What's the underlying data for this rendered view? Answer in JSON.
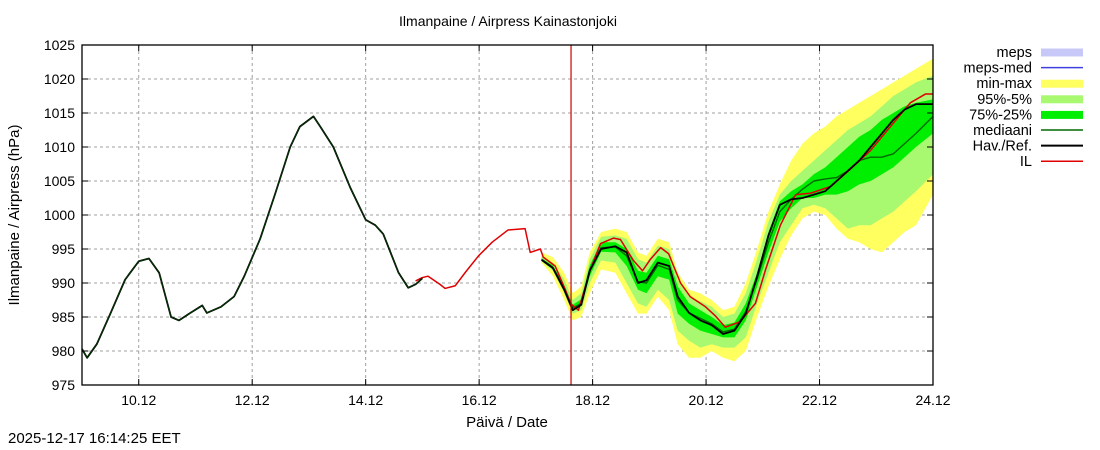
{
  "timestamp": "2025-12-17 16:14:25 EET",
  "colors": {
    "meps": "#c8c8f8",
    "meps_med": "#4040e0",
    "min_max": "#ffff60",
    "p95_5": "#a8f870",
    "p75_25": "#00ee00",
    "mediaani": "#006a00",
    "hav_ref": "#000000",
    "il": "#e00000",
    "now_line": "#d00000",
    "grid": "#a0a0a0"
  },
  "chart_data": {
    "type": "line",
    "title": "Ilmanpaine / Airpress Kainastonjoki",
    "xlabel": "Päivä / Date",
    "ylabel": "Ilmanpaine / Airpress (hPa)",
    "x_unit": "days since 9.12 00:00",
    "xlim": [
      0,
      15
    ],
    "ylim": [
      975,
      1025
    ],
    "grid": true,
    "legend_position": "right-outside-top",
    "xticks": [
      {
        "value": 1,
        "label": "10.12"
      },
      {
        "value": 3,
        "label": "12.12"
      },
      {
        "value": 5,
        "label": "14.12"
      },
      {
        "value": 7,
        "label": "16.12"
      },
      {
        "value": 9,
        "label": "18.12"
      },
      {
        "value": 11,
        "label": "20.12"
      },
      {
        "value": 13,
        "label": "22.12"
      },
      {
        "value": 15,
        "label": "24.12"
      }
    ],
    "yticks": [
      975,
      980,
      985,
      990,
      995,
      1000,
      1005,
      1010,
      1015,
      1020,
      1025
    ],
    "now_marker": 8.62,
    "legend": [
      {
        "key": "meps",
        "label": "meps",
        "style": "band"
      },
      {
        "key": "meps_med",
        "label": "meps-med",
        "style": "line"
      },
      {
        "key": "min_max",
        "label": "min-max",
        "style": "band"
      },
      {
        "key": "p95_5",
        "label": "95%-5%",
        "style": "band"
      },
      {
        "key": "p75_25",
        "label": "75%-25%",
        "style": "thickband"
      },
      {
        "key": "mediaani",
        "label": "mediaani",
        "style": "line"
      },
      {
        "key": "hav_ref",
        "label": "Hav./Ref.",
        "style": "line"
      },
      {
        "key": "il",
        "label": "IL",
        "style": "line"
      }
    ],
    "bands": {
      "min_max": {
        "x": [
          8.1,
          8.3,
          8.5,
          8.65,
          8.8,
          8.95,
          9.15,
          9.4,
          9.6,
          9.8,
          9.95,
          10.15,
          10.35,
          10.5,
          10.7,
          10.9,
          11.1,
          11.3,
          11.5,
          11.7,
          11.9,
          12.1,
          12.3,
          12.5,
          12.7,
          12.9,
          13.1,
          13.3,
          13.5,
          13.7,
          13.9,
          14.1,
          14.3,
          14.5,
          14.7,
          15.0
        ],
        "upper": [
          994.5,
          993.8,
          991.5,
          988.5,
          989.5,
          994.5,
          997.5,
          998.0,
          997.5,
          994.5,
          994.0,
          996.5,
          996.0,
          991.5,
          989.0,
          988.5,
          987.5,
          986.0,
          986.5,
          990.0,
          995.0,
          1000.5,
          1004.5,
          1008.0,
          1010.5,
          1012.0,
          1013.0,
          1014.5,
          1015.5,
          1016.5,
          1017.5,
          1018.5,
          1019.5,
          1020.5,
          1021.5,
          1023.0
        ],
        "lower": [
          993.0,
          991.0,
          987.5,
          984.5,
          985.0,
          988.5,
          992.0,
          991.5,
          988.5,
          985.5,
          985.5,
          988.0,
          986.0,
          981.0,
          979.0,
          979.0,
          980.0,
          979.0,
          978.5,
          980.0,
          985.0,
          989.5,
          993.5,
          997.0,
          999.5,
          1000.5,
          1000.0,
          998.0,
          996.5,
          996.0,
          995.0,
          994.5,
          996.0,
          997.5,
          998.5,
          1003.0
        ]
      },
      "p95_5": {
        "x": [
          8.1,
          8.3,
          8.5,
          8.65,
          8.8,
          8.95,
          9.15,
          9.4,
          9.6,
          9.8,
          9.95,
          10.15,
          10.35,
          10.5,
          10.7,
          10.9,
          11.1,
          11.3,
          11.5,
          11.7,
          11.9,
          12.1,
          12.3,
          12.5,
          12.7,
          12.9,
          13.1,
          13.3,
          13.5,
          13.7,
          13.9,
          14.1,
          14.3,
          14.5,
          14.7,
          15.0
        ],
        "upper": [
          994.0,
          993.0,
          990.5,
          987.5,
          988.5,
          993.5,
          996.8,
          997.0,
          996.5,
          993.5,
          993.0,
          995.5,
          995.0,
          990.5,
          988.0,
          987.3,
          986.5,
          985.0,
          985.5,
          988.5,
          993.5,
          999.0,
          1003.0,
          1005.0,
          1006.5,
          1008.0,
          1009.5,
          1011.0,
          1012.5,
          1013.5,
          1014.5,
          1016.0,
          1017.5,
          1018.5,
          1019.5,
          1020.5
        ],
        "lower": [
          993.2,
          991.8,
          988.5,
          985.5,
          986.0,
          990.0,
          993.3,
          993.0,
          990.0,
          987.0,
          986.5,
          989.0,
          987.5,
          983.0,
          981.5,
          980.5,
          981.0,
          980.5,
          980.5,
          982.0,
          987.0,
          991.5,
          996.0,
          998.5,
          1001.0,
          1001.5,
          1001.0,
          999.5,
          998.0,
          998.5,
          998.5,
          999.5,
          1000.5,
          1002.0,
          1003.5,
          1006.0
        ]
      },
      "p75_25": {
        "x": [
          8.1,
          8.3,
          8.5,
          8.65,
          8.8,
          8.95,
          9.15,
          9.4,
          9.6,
          9.8,
          9.95,
          10.15,
          10.35,
          10.5,
          10.7,
          10.9,
          11.1,
          11.3,
          11.5,
          11.7,
          11.9,
          12.1,
          12.3,
          12.5,
          12.7,
          12.9,
          13.1,
          13.3,
          13.5,
          13.7,
          13.9,
          14.1,
          14.3,
          14.5,
          14.7,
          15.0
        ],
        "upper": [
          993.6,
          992.6,
          989.6,
          986.8,
          987.6,
          992.6,
          996.0,
          996.0,
          995.0,
          991.8,
          991.5,
          994.0,
          993.5,
          989.5,
          987.0,
          986.0,
          985.0,
          983.8,
          984.2,
          987.0,
          991.5,
          997.5,
          1002.0,
          1003.5,
          1004.5,
          1006.0,
          1007.0,
          1008.5,
          1010.0,
          1011.5,
          1012.5,
          1014.0,
          1015.0,
          1016.0,
          1016.5,
          1017.0
        ],
        "lower": [
          993.3,
          992.0,
          989.0,
          986.0,
          986.6,
          991.0,
          994.6,
          994.5,
          992.5,
          989.0,
          988.5,
          991.0,
          990.5,
          985.5,
          984.0,
          983.0,
          982.5,
          982.0,
          982.0,
          984.5,
          989.5,
          994.5,
          999.0,
          1001.0,
          1002.5,
          1002.5,
          1003.0,
          1003.0,
          1003.5,
          1004.5,
          1005.0,
          1006.0,
          1007.0,
          1008.5,
          1010.0,
          1012.0
        ]
      }
    },
    "series": [
      {
        "key": "mediaani",
        "name": "mediaani",
        "x": [
          8.1,
          8.3,
          8.5,
          8.65,
          8.8,
          8.95,
          9.15,
          9.4,
          9.6,
          9.8,
          9.95,
          10.15,
          10.35,
          10.5,
          10.7,
          10.9,
          11.1,
          11.3,
          11.5,
          11.7,
          11.9,
          12.1,
          12.3,
          12.5,
          12.7,
          12.9,
          13.1,
          13.3,
          13.5,
          13.7,
          13.9,
          14.1,
          14.3,
          14.5,
          14.7,
          15.0
        ],
        "y": [
          993.5,
          992.3,
          989.3,
          986.3,
          987.0,
          992.0,
          995.2,
          995.3,
          994.0,
          990.2,
          990.0,
          992.6,
          992.0,
          987.5,
          985.6,
          984.8,
          984.0,
          982.8,
          983.2,
          985.8,
          990.6,
          996.0,
          1000.5,
          1002.3,
          1003.8,
          1005.0,
          1005.3,
          1005.5,
          1006.5,
          1008.0,
          1008.5,
          1008.5,
          1009.0,
          1010.5,
          1012.0,
          1014.5
        ]
      },
      {
        "key": "hav_ref",
        "name": "Hav./Ref.",
        "x": [
          0,
          0.09,
          0.26,
          0.5,
          0.76,
          1.0,
          1.18,
          1.36,
          1.57,
          1.71,
          1.89,
          2.12,
          2.2,
          2.45,
          2.68,
          2.86,
          3.14,
          3.4,
          3.67,
          3.84,
          4.08,
          4.2,
          4.43,
          4.73,
          5.0,
          5.17,
          5.31,
          5.58,
          5.75,
          5.88,
          6.0
        ],
        "y": [
          980.3,
          979.0,
          981.0,
          985.5,
          990.5,
          993.2,
          993.6,
          991.5,
          985.0,
          984.5,
          985.5,
          986.7,
          985.6,
          986.5,
          988.0,
          991.0,
          996.5,
          1003.0,
          1010.0,
          1013.0,
          1014.5,
          1013.0,
          1010.0,
          1004.0,
          999.3,
          998.5,
          997.2,
          991.5,
          989.3,
          989.8,
          990.7
        ]
      },
      {
        "key": "hav_ref_forecast",
        "name": "Hav./Ref. (forecast)",
        "x": [
          8.1,
          8.3,
          8.5,
          8.65,
          8.8,
          8.95,
          9.15,
          9.4,
          9.6,
          9.8,
          9.95,
          10.15,
          10.35,
          10.5,
          10.7,
          10.9,
          11.1,
          11.3,
          11.5,
          11.7,
          11.9,
          12.1,
          12.3,
          12.5,
          12.7,
          12.9,
          13.1,
          13.3,
          13.5,
          13.7,
          13.9,
          14.1,
          14.3,
          14.5,
          14.7,
          15.0
        ],
        "y": [
          993.4,
          992.2,
          989.0,
          986.0,
          986.8,
          991.8,
          995.0,
          995.4,
          994.5,
          990.0,
          990.4,
          993.0,
          992.5,
          988.0,
          985.6,
          984.5,
          983.8,
          982.5,
          983.0,
          985.5,
          991.0,
          997.0,
          1001.5,
          1002.3,
          1002.5,
          1003.0,
          1003.5,
          1005.0,
          1006.5,
          1008.0,
          1010.0,
          1012.0,
          1014.0,
          1015.5,
          1016.3,
          1016.3
        ]
      },
      {
        "key": "il",
        "name": "IL",
        "x": [
          5.88,
          6.0,
          6.1,
          6.31,
          6.4,
          6.58,
          6.76,
          6.99,
          7.23,
          7.51,
          7.81,
          7.9,
          8.08,
          8.13,
          8.34,
          8.52,
          8.61,
          8.75,
          8.96,
          9.14,
          9.37,
          9.49,
          9.72,
          9.88,
          10.02,
          10.2,
          10.34,
          10.55,
          10.72,
          10.99,
          11.16,
          11.34,
          11.6,
          11.87,
          12.05,
          12.31,
          12.58,
          12.84,
          13.2,
          13.55,
          13.9,
          14.25,
          14.6,
          14.87,
          15.0
        ],
        "y": [
          990.3,
          990.8,
          991.0,
          989.8,
          989.2,
          989.6,
          991.6,
          994.0,
          996.0,
          997.8,
          998.0,
          994.5,
          995.0,
          993.8,
          992.5,
          989.0,
          987.0,
          986.0,
          992.0,
          995.8,
          996.6,
          996.4,
          993.3,
          991.8,
          993.5,
          995.2,
          994.3,
          990.0,
          988.0,
          986.5,
          985.2,
          983.5,
          984.3,
          987.0,
          992.0,
          998.5,
          1003.0,
          1003.2,
          1004.2,
          1006.8,
          1009.5,
          1013.0,
          1016.5,
          1017.8,
          1017.8
        ]
      }
    ]
  }
}
